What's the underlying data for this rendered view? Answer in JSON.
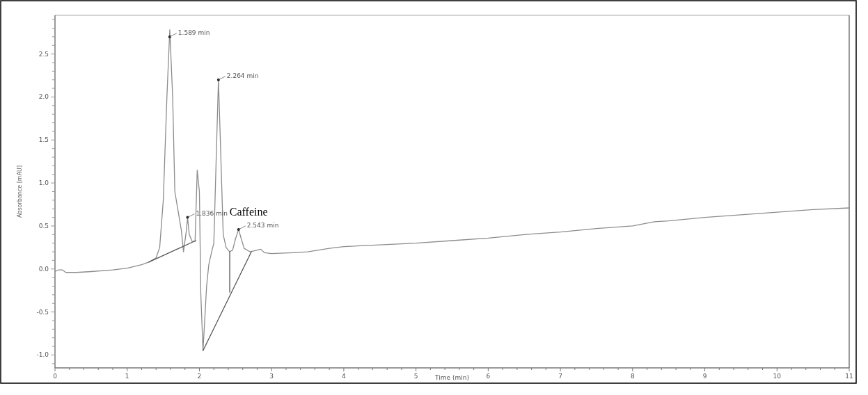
{
  "chart_data": {
    "type": "line",
    "xlabel": "Time (min)",
    "ylabel": "Absorbance [mAU]",
    "xlim": [
      0,
      11
    ],
    "ylim": [
      -1.15,
      2.95
    ],
    "xticks": [
      {
        "value": 0,
        "label": "0"
      },
      {
        "value": 0.2,
        "label": null
      },
      {
        "value": 0.4,
        "label": null
      },
      {
        "value": 0.6,
        "label": null
      },
      {
        "value": 0.8,
        "label": null
      },
      {
        "value": 1,
        "label": "1"
      },
      {
        "value": 1.2,
        "label": null
      },
      {
        "value": 1.4,
        "label": null
      },
      {
        "value": 1.6,
        "label": null
      },
      {
        "value": 1.8,
        "label": null
      },
      {
        "value": 2,
        "label": "2"
      },
      {
        "value": 2.2,
        "label": null
      },
      {
        "value": 2.4,
        "label": null
      },
      {
        "value": 2.6,
        "label": null
      },
      {
        "value": 2.8,
        "label": null
      },
      {
        "value": 3,
        "label": "3"
      },
      {
        "value": 3.2,
        "label": null
      },
      {
        "value": 3.4,
        "label": null
      },
      {
        "value": 3.6,
        "label": null
      },
      {
        "value": 3.8,
        "label": null
      },
      {
        "value": 4,
        "label": "4"
      },
      {
        "value": 4.2,
        "label": null
      },
      {
        "value": 4.4,
        "label": null
      },
      {
        "value": 4.6,
        "label": null
      },
      {
        "value": 4.8,
        "label": null
      },
      {
        "value": 5,
        "label": "5"
      },
      {
        "value": 5.2,
        "label": null
      },
      {
        "value": 5.4,
        "label": null
      },
      {
        "value": 5.6,
        "label": null
      },
      {
        "value": 5.8,
        "label": null
      },
      {
        "value": 6,
        "label": "6"
      },
      {
        "value": 6.2,
        "label": null
      },
      {
        "value": 6.4,
        "label": null
      },
      {
        "value": 6.6,
        "label": null
      },
      {
        "value": 6.8,
        "label": null
      },
      {
        "value": 7,
        "label": "7"
      },
      {
        "value": 7.2,
        "label": null
      },
      {
        "value": 7.4,
        "label": null
      },
      {
        "value": 7.6,
        "label": null
      },
      {
        "value": 7.8,
        "label": null
      },
      {
        "value": 8,
        "label": "8"
      },
      {
        "value": 8.2,
        "label": null
      },
      {
        "value": 8.4,
        "label": null
      },
      {
        "value": 8.6,
        "label": null
      },
      {
        "value": 8.8,
        "label": null
      },
      {
        "value": 9,
        "label": "9"
      },
      {
        "value": 9.2,
        "label": null
      },
      {
        "value": 9.4,
        "label": null
      },
      {
        "value": 9.6,
        "label": null
      },
      {
        "value": 9.8,
        "label": null
      },
      {
        "value": 10,
        "label": "10"
      },
      {
        "value": 10.2,
        "label": null
      },
      {
        "value": 10.4,
        "label": null
      },
      {
        "value": 10.6,
        "label": null
      },
      {
        "value": 10.8,
        "label": null
      },
      {
        "value": 11,
        "label": "11"
      }
    ],
    "yticks": [
      {
        "value": -1.1,
        "label": null
      },
      {
        "value": -1,
        "label": "-1.0"
      },
      {
        "value": -0.9,
        "label": null
      },
      {
        "value": -0.8,
        "label": null
      },
      {
        "value": -0.7,
        "label": null
      },
      {
        "value": -0.6,
        "label": null
      },
      {
        "value": -0.5,
        "label": "-0.5"
      },
      {
        "value": -0.4,
        "label": null
      },
      {
        "value": -0.3,
        "label": null
      },
      {
        "value": -0.2,
        "label": null
      },
      {
        "value": -0.1,
        "label": null
      },
      {
        "value": 0,
        "label": "0.0"
      },
      {
        "value": 0.1,
        "label": null
      },
      {
        "value": 0.2,
        "label": null
      },
      {
        "value": 0.3,
        "label": null
      },
      {
        "value": 0.4,
        "label": null
      },
      {
        "value": 0.5,
        "label": "0.5"
      },
      {
        "value": 0.6,
        "label": null
      },
      {
        "value": 0.7,
        "label": null
      },
      {
        "value": 0.8,
        "label": null
      },
      {
        "value": 0.9,
        "label": null
      },
      {
        "value": 1,
        "label": "1.0"
      },
      {
        "value": 1.1,
        "label": null
      },
      {
        "value": 1.2,
        "label": null
      },
      {
        "value": 1.3,
        "label": null
      },
      {
        "value": 1.4,
        "label": null
      },
      {
        "value": 1.5,
        "label": "1.5"
      },
      {
        "value": 1.6,
        "label": null
      },
      {
        "value": 1.7,
        "label": null
      },
      {
        "value": 1.8,
        "label": null
      },
      {
        "value": 1.9,
        "label": null
      },
      {
        "value": 2,
        "label": "2.0"
      },
      {
        "value": 2.1,
        "label": null
      },
      {
        "value": 2.2,
        "label": null
      },
      {
        "value": 2.3,
        "label": null
      },
      {
        "value": 2.4,
        "label": null
      },
      {
        "value": 2.5,
        "label": "2.5"
      },
      {
        "value": 2.6,
        "label": null
      },
      {
        "value": 2.7,
        "label": null
      },
      {
        "value": 2.8,
        "label": null
      },
      {
        "value": 2.9,
        "label": null
      }
    ],
    "grid": false,
    "marker": "none",
    "series": [
      {
        "color": "#8c8c8c",
        "x": [
          0,
          0.05,
          0.1,
          0.15,
          0.3,
          0.5,
          0.8,
          1.0,
          1.2,
          1.3,
          1.4,
          1.45,
          1.5,
          1.55,
          1.59,
          1.63,
          1.66,
          1.7,
          1.75,
          1.78,
          1.82,
          1.836,
          1.86,
          1.9,
          1.94,
          1.97,
          2.0,
          2.02,
          2.05,
          2.1,
          2.13,
          2.17,
          2.2,
          2.24,
          2.264,
          2.29,
          2.33,
          2.37,
          2.42,
          2.46,
          2.5,
          2.543,
          2.58,
          2.62,
          2.7,
          2.8,
          2.85,
          2.9,
          3.0,
          3.3,
          3.5,
          3.8,
          4.0,
          4.5,
          5,
          5.5,
          6,
          6.5,
          7,
          7.5,
          8,
          8.3,
          8.5,
          9,
          9.5,
          10,
          10.5,
          11
        ],
        "values": [
          -0.03,
          -0.01,
          -0.01,
          -0.04,
          -0.04,
          -0.03,
          -0.01,
          0.01,
          0.05,
          0.08,
          0.13,
          0.25,
          0.8,
          2.0,
          2.78,
          2.0,
          0.9,
          0.7,
          0.45,
          0.2,
          0.45,
          0.6,
          0.4,
          0.32,
          0.32,
          1.15,
          0.9,
          -0.3,
          -0.95,
          -0.2,
          0.05,
          0.2,
          0.3,
          1.5,
          2.2,
          1.5,
          0.4,
          0.25,
          0.2,
          0.22,
          0.35,
          0.46,
          0.35,
          0.24,
          0.2,
          0.22,
          0.23,
          0.19,
          0.18,
          0.19,
          0.2,
          0.24,
          0.26,
          0.28,
          0.3,
          0.33,
          0.36,
          0.4,
          0.43,
          0.47,
          0.5,
          0.55,
          0.56,
          0.6,
          0.63,
          0.66,
          0.69,
          0.71
        ]
      },
      {
        "color": "#555555",
        "x": [
          1.3,
          1.95
        ],
        "values": [
          0.08,
          0.33
        ]
      },
      {
        "color": "#555555",
        "x": [
          2.05,
          2.72
        ],
        "values": [
          -0.95,
          0.2
        ]
      },
      {
        "color": "#555555",
        "x": [
          2.42,
          2.42
        ],
        "values": [
          0.2,
          -0.27
        ]
      }
    ],
    "annotations": [
      {
        "text": "1.589 min",
        "x": 1.589,
        "y": 2.7
      },
      {
        "text": "2.264 min",
        "x": 2.264,
        "y": 2.2
      },
      {
        "text": "1.836 min",
        "x": 1.836,
        "y": 0.6
      },
      {
        "text": "2.543 min",
        "x": 2.543,
        "y": 0.46
      },
      "Caffeine"
    ]
  }
}
